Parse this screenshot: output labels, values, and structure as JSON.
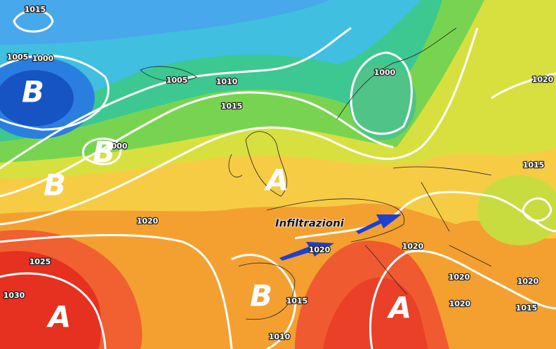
{
  "isobar_labels": [
    "1015",
    "1005",
    "1000",
    "1005",
    "1010",
    "1015",
    "1000",
    "1020",
    "1015",
    "1020",
    "1025",
    "1030",
    "1020",
    "1020",
    "1015",
    "1010",
    "1020",
    "1020",
    "1020",
    "1015",
    "000"
  ],
  "pressure_centers": [
    "B",
    "B",
    "B",
    "A",
    "B",
    "A",
    "A"
  ],
  "annotation": "Infiltrazioni"
}
